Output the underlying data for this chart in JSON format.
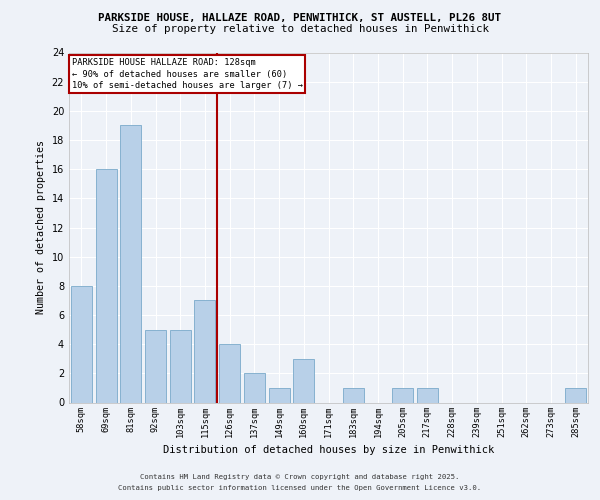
{
  "title1": "PARKSIDE HOUSE, HALLAZE ROAD, PENWITHICK, ST AUSTELL, PL26 8UT",
  "title2": "Size of property relative to detached houses in Penwithick",
  "xlabel": "Distribution of detached houses by size in Penwithick",
  "ylabel": "Number of detached properties",
  "categories": [
    "58sqm",
    "69sqm",
    "81sqm",
    "92sqm",
    "103sqm",
    "115sqm",
    "126sqm",
    "137sqm",
    "149sqm",
    "160sqm",
    "171sqm",
    "183sqm",
    "194sqm",
    "205sqm",
    "217sqm",
    "228sqm",
    "239sqm",
    "251sqm",
    "262sqm",
    "273sqm",
    "285sqm"
  ],
  "values": [
    8,
    16,
    19,
    5,
    5,
    7,
    4,
    2,
    1,
    3,
    0,
    1,
    0,
    1,
    1,
    0,
    0,
    0,
    0,
    0,
    1
  ],
  "bar_color": "#b8d0e8",
  "bar_edge_color": "#7aaaca",
  "vline_index": 6,
  "vline_color": "#aa0000",
  "annotation_lines": [
    "PARKSIDE HOUSE HALLAZE ROAD: 128sqm",
    "← 90% of detached houses are smaller (60)",
    "10% of semi-detached houses are larger (7) →"
  ],
  "annotation_box_color": "#aa0000",
  "ylim": [
    0,
    24
  ],
  "yticks": [
    0,
    2,
    4,
    6,
    8,
    10,
    12,
    14,
    16,
    18,
    20,
    22,
    24
  ],
  "background_color": "#eef2f8",
  "grid_color": "#ffffff",
  "footer1": "Contains HM Land Registry data © Crown copyright and database right 2025.",
  "footer2": "Contains public sector information licensed under the Open Government Licence v3.0."
}
